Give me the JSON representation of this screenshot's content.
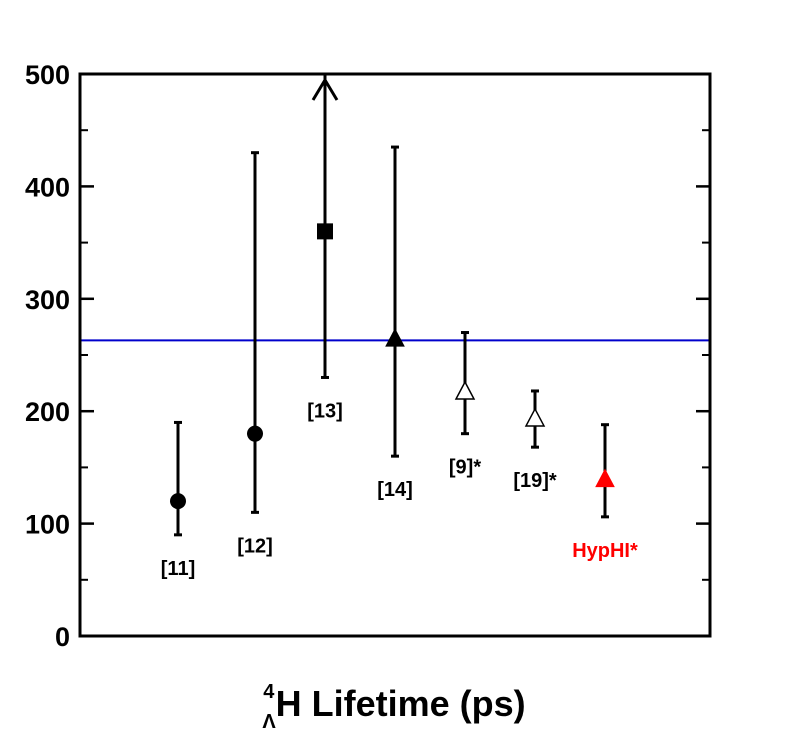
{
  "chart_data": {
    "type": "scatter",
    "title": "",
    "xlabel": {
      "superscript": "4",
      "subscript": "Λ",
      "text": "H Lifetime (ps)"
    },
    "ylabel": "",
    "ylim": [
      0,
      500
    ],
    "xlim": [
      0,
      9
    ],
    "yticks": [
      0,
      100,
      200,
      300,
      400,
      500
    ],
    "ytick_labels": [
      "0",
      "100",
      "200",
      "300",
      "400",
      "500"
    ],
    "reference_line": {
      "y": 263,
      "color": "#0000cc"
    },
    "points": [
      {
        "label": "[11]",
        "x": 1.4,
        "y": 120,
        "err_low": 90,
        "err_high": 190,
        "marker": "circle",
        "color": "#000000",
        "label_color": "#000000"
      },
      {
        "label": "[12]",
        "x": 2.5,
        "y": 180,
        "err_low": 110,
        "err_high": 430,
        "marker": "circle",
        "color": "#000000",
        "label_color": "#000000"
      },
      {
        "label": "[13]",
        "x": 3.5,
        "y": 360,
        "err_low": 230,
        "err_high": 500,
        "marker": "square",
        "color": "#000000",
        "label_color": "#000000",
        "arrow_up": true
      },
      {
        "label": "[14]",
        "x": 4.5,
        "y": 265,
        "err_low": 160,
        "err_high": 435,
        "marker": "triangle-filled",
        "color": "#000000",
        "label_color": "#000000"
      },
      {
        "label": "[9]*",
        "x": 5.5,
        "y": 218,
        "err_low": 180,
        "err_high": 270,
        "marker": "triangle-open",
        "color": "#000000",
        "label_color": "#000000"
      },
      {
        "label": "[19]*",
        "x": 6.5,
        "y": 194,
        "err_low": 168,
        "err_high": 218,
        "marker": "triangle-open",
        "color": "#000000",
        "label_color": "#000000"
      },
      {
        "label": "HypHI*",
        "x": 7.5,
        "y": 140,
        "err_low": 106,
        "err_high": 188,
        "marker": "triangle-filled",
        "color": "#ff0000",
        "label_color": "#ff0000"
      }
    ]
  }
}
